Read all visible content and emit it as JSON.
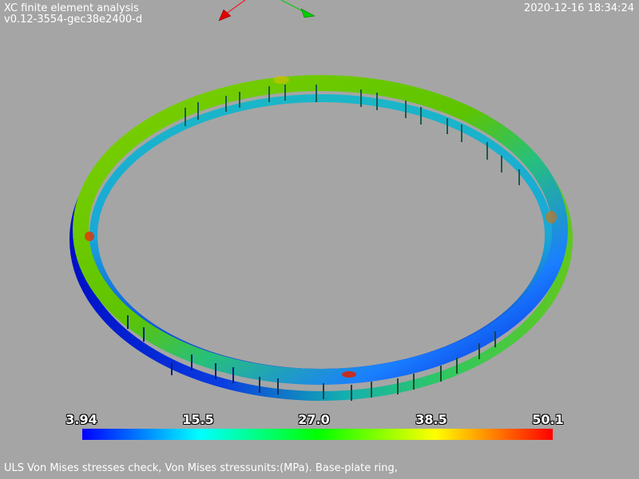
{
  "header": {
    "title": "XC finite element analysis",
    "version": "v0.12-3554-gec38e2400-d",
    "timestamp": "2020-12-16 18:34:24"
  },
  "scalar_bar": {
    "ticks": [
      "3.94",
      "15.5",
      "27.0",
      "38.5",
      "50.1"
    ],
    "colors": [
      "#0000ff",
      "#00ffff",
      "#00ff00",
      "#ffff00",
      "#ff0000"
    ]
  },
  "caption": "ULS Von Mises stresses check, Von Mises stressunits:(MPa). Base-plate ring,",
  "background_color": "#a5a5a5",
  "axes": {
    "x_color": "#ff0000",
    "y_color": "#00cc00"
  }
}
